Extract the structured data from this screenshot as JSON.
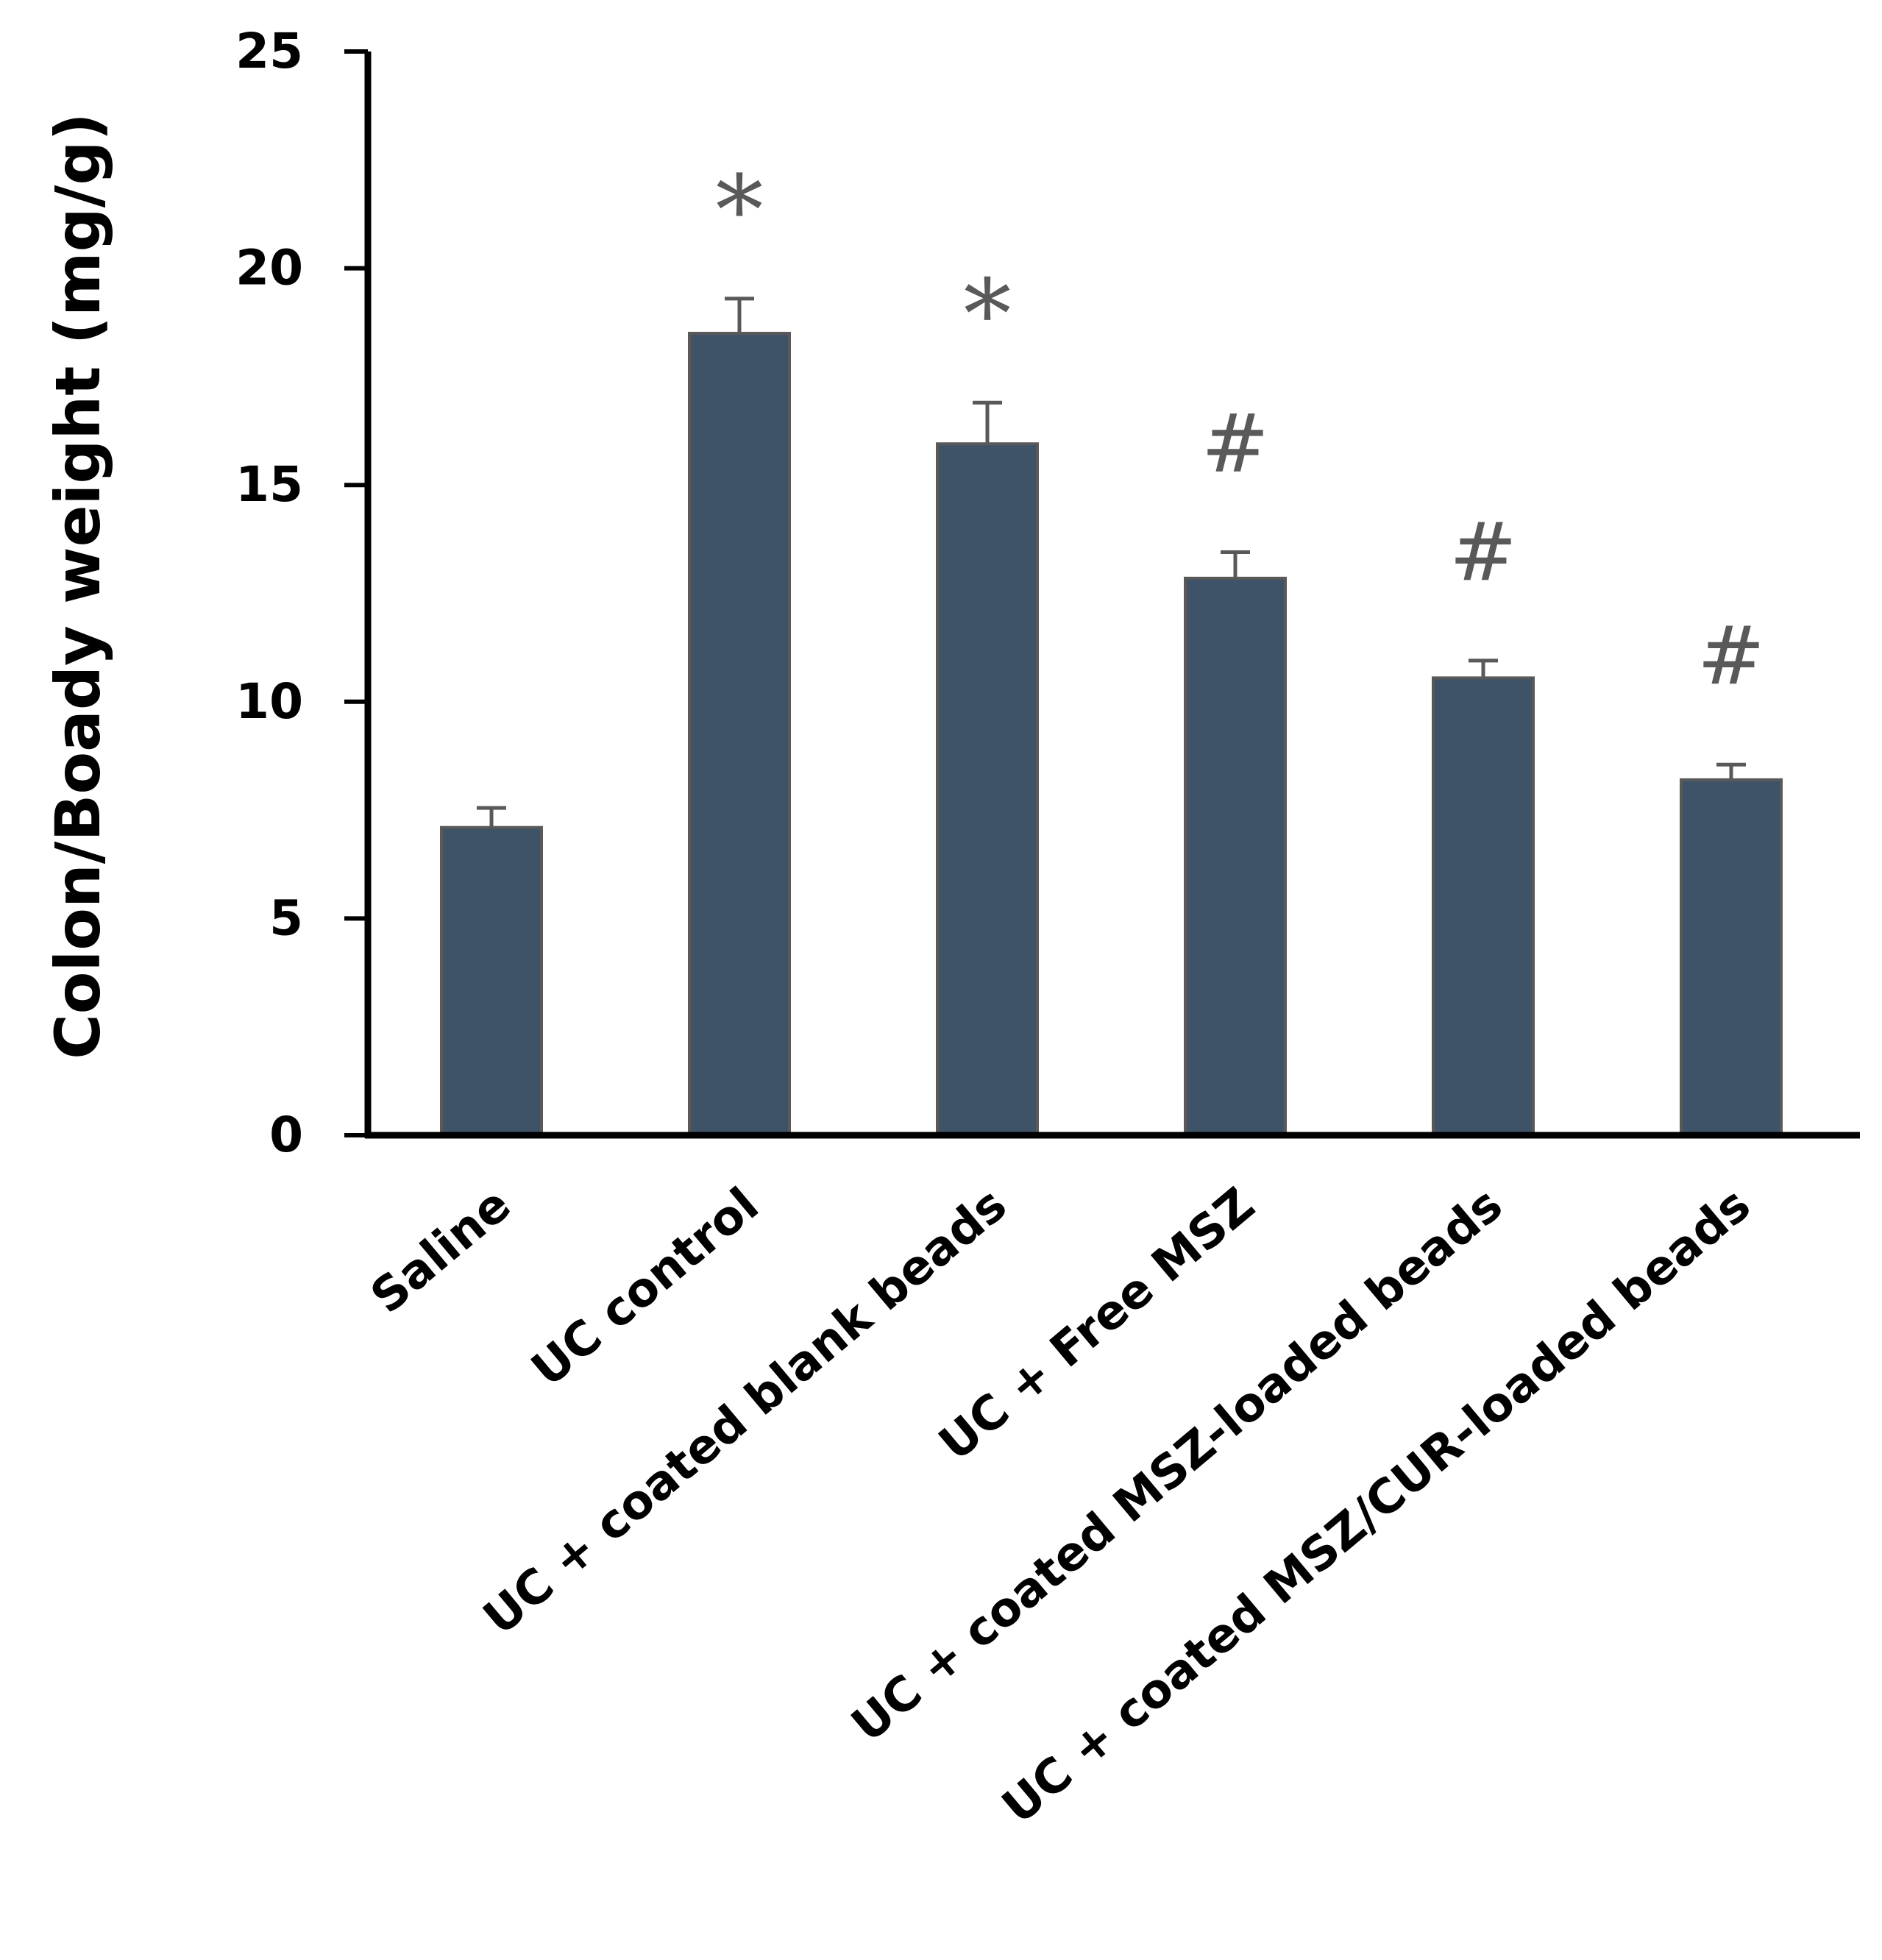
{
  "chart_data": {
    "type": "bar",
    "title": "",
    "xlabel": "",
    "ylabel": "Colon/Boady weight  (mg/g)",
    "ylim": [
      0,
      25
    ],
    "yticks": [
      0,
      5,
      10,
      15,
      20,
      25
    ],
    "grid": false,
    "categories": [
      "Saline",
      "UC control",
      "UC + coated blank beads",
      "UC + Free MSZ",
      "UC + coated MSZ-loaded beads",
      "UC + coated MSZ/CUR-loaded beads"
    ],
    "values": [
      7.1,
      18.5,
      15.95,
      12.85,
      10.55,
      8.2
    ],
    "errors": [
      0.45,
      0.8,
      0.95,
      0.6,
      0.4,
      0.35
    ],
    "annotations": [
      "",
      "*",
      "*",
      "#",
      "#",
      "#"
    ],
    "bar_color": "#3f5368",
    "bar_edge_color": "#595959",
    "annotation_color": "#595959"
  }
}
